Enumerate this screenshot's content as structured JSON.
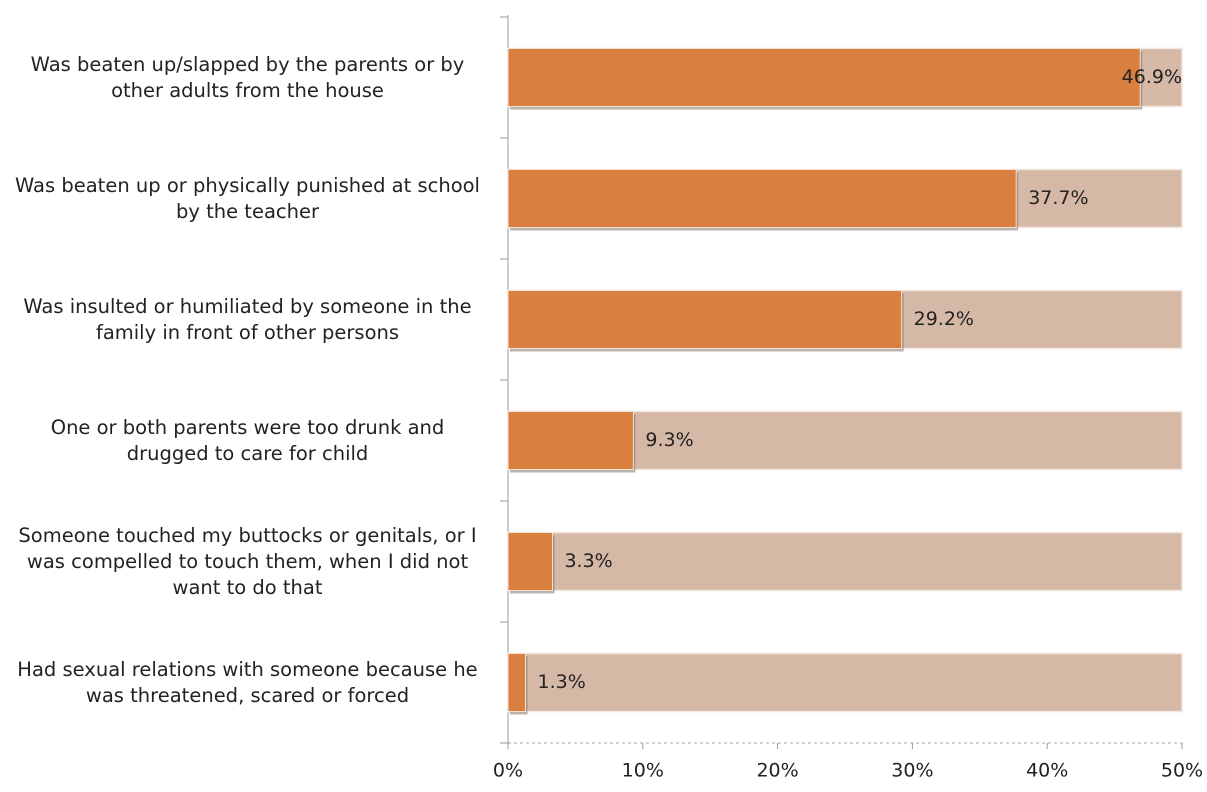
{
  "chart_data": {
    "type": "barh",
    "categories": [
      "Was beaten up/slapped by the parents or by other adults from the house",
      "Was beaten up or physically punished at school by the teacher",
      "Was insulted or humiliated by someone in the family in front of other persons",
      "One or both parents were too drunk and drugged to care for child",
      "Someone touched my buttocks or genitals, or I was compelled to touch them, when I did not want to do that",
      "Had sexual relations with someone because he was threatened, scared or forced"
    ],
    "values": [
      46.9,
      37.7,
      29.2,
      9.3,
      3.3,
      1.3
    ],
    "value_labels": [
      "46.9%",
      "37.7%",
      "29.2%",
      "9.3%",
      "3.3%",
      "1.3%"
    ],
    "color": "#d97f40",
    "xlim": [
      0,
      50
    ],
    "xticks": [
      {
        "value": 0,
        "label": "0%"
      },
      {
        "value": 10,
        "label": "10%"
      },
      {
        "value": 20,
        "label": "20%"
      },
      {
        "value": 30,
        "label": "30%"
      },
      {
        "value": 40,
        "label": "40%"
      },
      {
        "value": 50,
        "label": "50%"
      }
    ]
  }
}
